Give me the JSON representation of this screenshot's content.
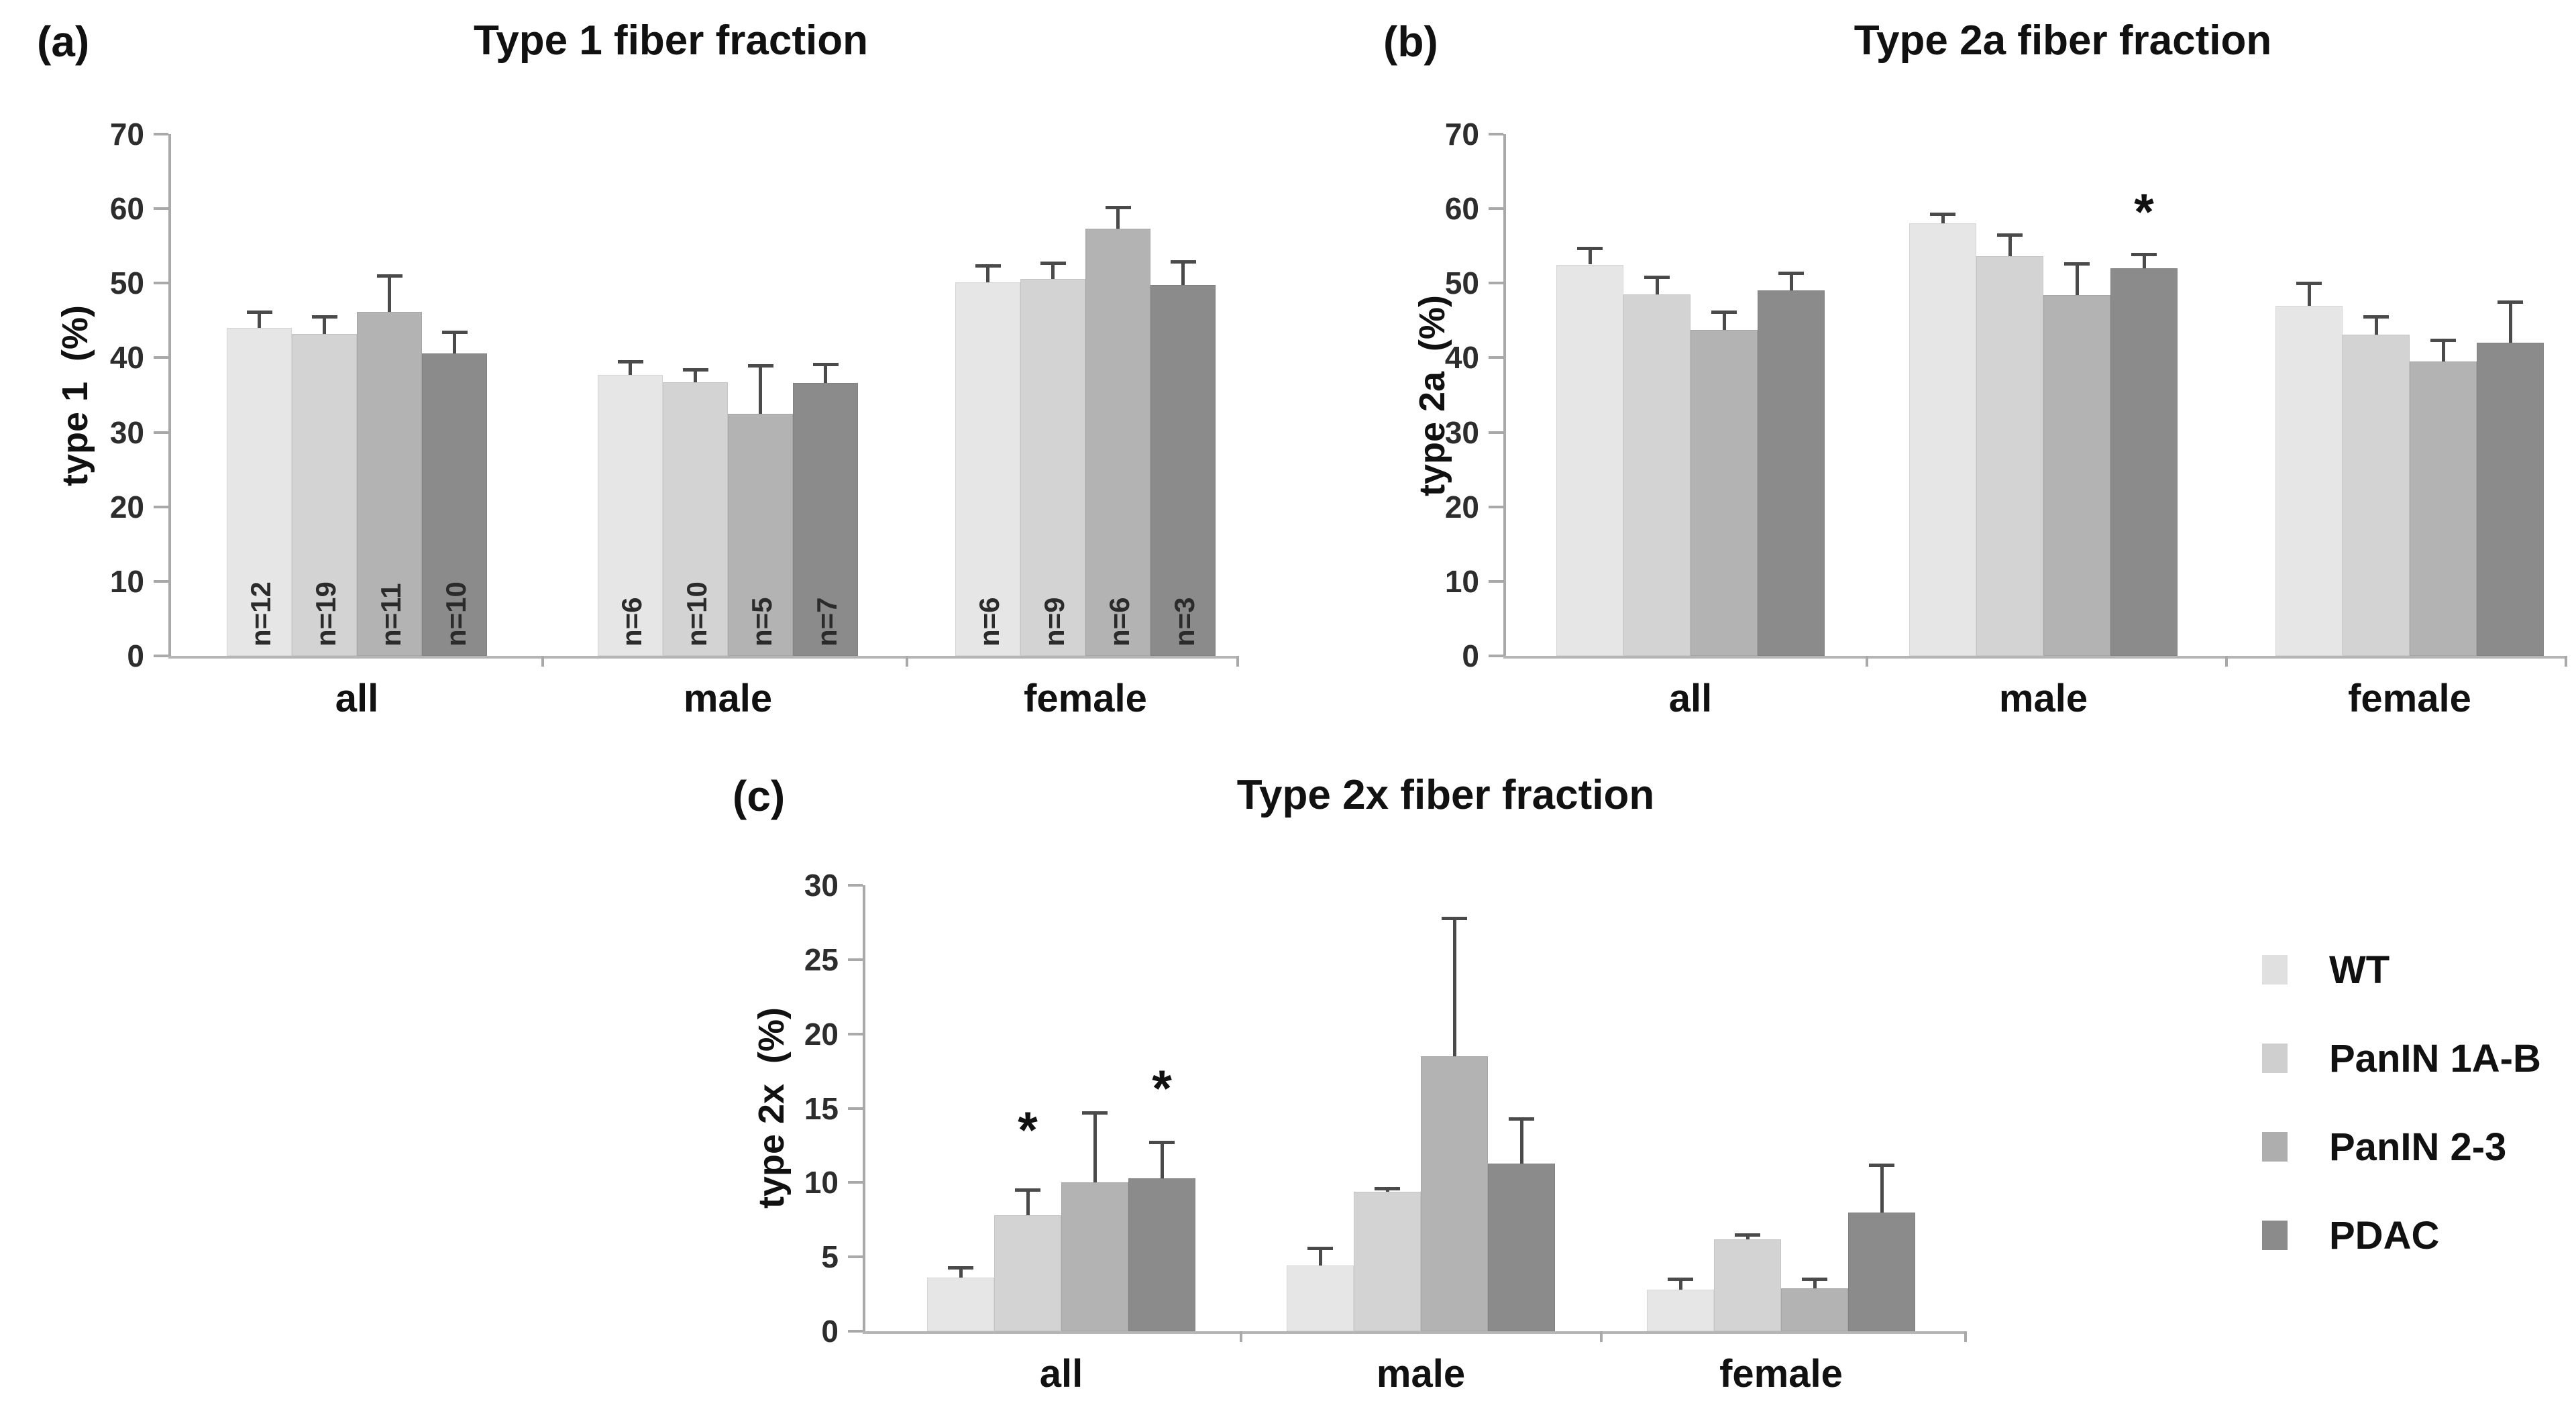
{
  "colors": {
    "series": [
      "#e6e6e6",
      "#d3d3d3",
      "#b3b3b3",
      "#8b8b8b"
    ],
    "error_bar": "#4a4a4a",
    "axis": "#a9a9a9",
    "text": "#111111"
  },
  "legend": {
    "position": "bottom-right",
    "items": [
      {
        "label": "WT",
        "color": "#e0e0e0"
      },
      {
        "label": "PanIN 1A-B",
        "color": "#cfcfcf"
      },
      {
        "label": "PanIN 2-3",
        "color": "#aeaeae"
      },
      {
        "label": "PDAC",
        "color": "#8b8b8b"
      }
    ]
  },
  "chart_data": [
    {
      "id": "a",
      "type": "bar",
      "panel_letter": "(a)",
      "title": "Type 1 fiber fraction",
      "xlabel": "",
      "ylabel": "type 1  (%)",
      "ylim": [
        0,
        70
      ],
      "yticks": [
        0,
        10,
        20,
        30,
        40,
        50,
        60,
        70
      ],
      "grid": false,
      "categories": [
        "all",
        "male",
        "female"
      ],
      "series": [
        {
          "name": "WT",
          "values": [
            44.0,
            37.7,
            50.1
          ],
          "errors": [
            2.2,
            1.8,
            2.3
          ],
          "n_labels": [
            "n=12",
            "n=6",
            "n=6"
          ]
        },
        {
          "name": "PanIN 1A-B",
          "values": [
            43.2,
            36.7,
            50.6
          ],
          "errors": [
            2.3,
            1.7,
            2.1
          ],
          "n_labels": [
            "n=19",
            "n=10",
            "n=9"
          ]
        },
        {
          "name": "PanIN 2-3",
          "values": [
            46.2,
            32.5,
            57.3
          ],
          "errors": [
            4.8,
            6.5,
            2.9
          ],
          "n_labels": [
            "n=11",
            "n=5",
            "n=6"
          ]
        },
        {
          "name": "PDAC",
          "values": [
            40.6,
            36.6,
            49.8
          ],
          "errors": [
            2.9,
            2.5,
            3.1
          ],
          "n_labels": [
            "n=10",
            "n=7",
            "n=3"
          ]
        }
      ],
      "annotations": []
    },
    {
      "id": "b",
      "type": "bar",
      "panel_letter": "(b)",
      "title": "Type 2a fiber fraction",
      "xlabel": "",
      "ylabel": "type 2a  (%)",
      "ylim": [
        0,
        70
      ],
      "yticks": [
        0,
        10,
        20,
        30,
        40,
        50,
        60,
        70
      ],
      "grid": false,
      "categories": [
        "all",
        "male",
        "female"
      ],
      "series": [
        {
          "name": "WT",
          "values": [
            52.5,
            58.0,
            47.0
          ],
          "errors": [
            2.2,
            1.3,
            3.0
          ]
        },
        {
          "name": "PanIN 1A-B",
          "values": [
            48.5,
            53.6,
            43.1
          ],
          "errors": [
            2.3,
            2.9,
            2.4
          ]
        },
        {
          "name": "PanIN 2-3",
          "values": [
            43.7,
            48.4,
            39.5
          ],
          "errors": [
            2.5,
            4.2,
            2.9
          ]
        },
        {
          "name": "PDAC",
          "values": [
            49.0,
            52.0,
            42.0
          ],
          "errors": [
            2.4,
            1.9,
            5.5
          ]
        }
      ],
      "annotations": [
        {
          "text": "*",
          "category_index": 1,
          "series_index": 3,
          "y": 59.5
        }
      ]
    },
    {
      "id": "c",
      "type": "bar",
      "panel_letter": "(c)",
      "title": "Type 2x fiber fraction",
      "xlabel": "",
      "ylabel": "type 2x  (%)",
      "ylim": [
        0,
        30
      ],
      "yticks": [
        0,
        5,
        10,
        15,
        20,
        25,
        30
      ],
      "grid": false,
      "categories": [
        "all",
        "male",
        "female"
      ],
      "series": [
        {
          "name": "WT",
          "values": [
            3.6,
            4.4,
            2.8
          ],
          "errors": [
            0.7,
            1.2,
            0.7
          ]
        },
        {
          "name": "PanIN 1A-B",
          "values": [
            7.8,
            9.4,
            6.2
          ],
          "errors": [
            1.7,
            0.2,
            0.3
          ]
        },
        {
          "name": "PanIN 2-3",
          "values": [
            10.0,
            18.5,
            2.9
          ],
          "errors": [
            4.7,
            9.3,
            0.6
          ]
        },
        {
          "name": "PDAC",
          "values": [
            10.3,
            11.3,
            8.0
          ],
          "errors": [
            2.4,
            3.0,
            3.2
          ]
        }
      ],
      "annotations": [
        {
          "text": "*",
          "category_index": 0,
          "series_index": 1,
          "y": 13.5
        },
        {
          "text": "*",
          "category_index": 0,
          "series_index": 3,
          "y": 16.3
        }
      ]
    }
  ]
}
